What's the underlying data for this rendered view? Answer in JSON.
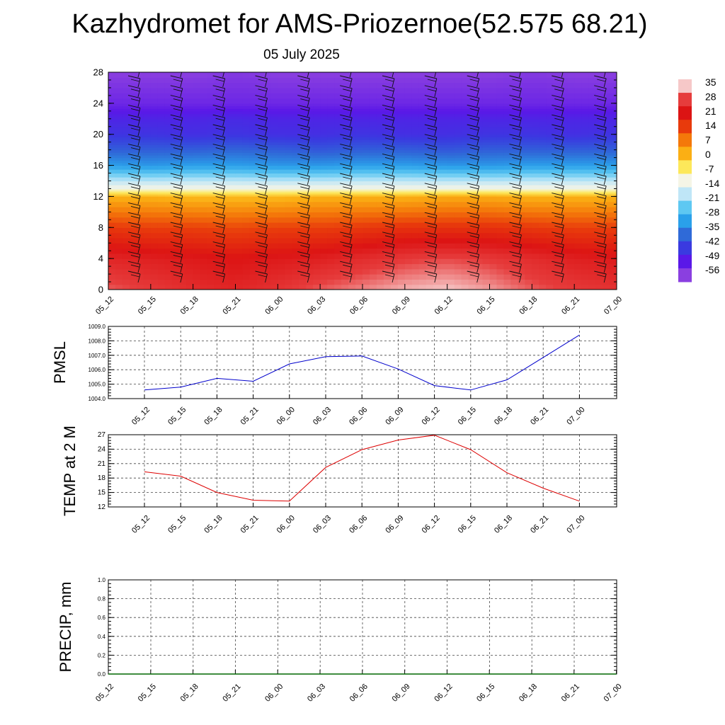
{
  "title": "Kazhydromet for AMS-Priozernoe(52.575 68.21)",
  "subtitle": "05 July 2025",
  "colorbar": {
    "labels": [
      "35",
      "28",
      "21",
      "14",
      "7",
      "0",
      "-7",
      "-14",
      "-21",
      "-28",
      "-35",
      "-42",
      "-49",
      "-56"
    ],
    "colors": [
      "#f6c8c8",
      "#e63c3c",
      "#dc1414",
      "#e83a0c",
      "#f4780a",
      "#fbaf14",
      "#fde85a",
      "#f5f5e6",
      "#bfe6f7",
      "#5ec8f2",
      "#2aa0ea",
      "#2f6ad8",
      "#3a3ae0",
      "#5a18e8",
      "#8a3fe0"
    ]
  },
  "chart_data": [
    {
      "type": "heatmap",
      "description_variable": "",
      "x_tick_labels": [
        "05_12",
        "05_15",
        "05_18",
        "05_21",
        "06_00",
        "06_03",
        "06_06",
        "06_09",
        "06_12",
        "06_15",
        "06_18",
        "06_21",
        "07_00"
      ],
      "y_ticks": [
        0,
        4,
        8,
        12,
        16,
        20,
        24,
        28
      ],
      "ylim": [
        0,
        28
      ],
      "color_scale": {
        "min": -56,
        "max": 35
      },
      "layers": [
        {
          "z": 0,
          "values": [
            30,
            28,
            26,
            25,
            27,
            30,
            32,
            34,
            35,
            33,
            30,
            28,
            27
          ]
        },
        {
          "z": 4,
          "values": [
            25,
            24,
            23,
            22,
            23,
            24,
            26,
            28,
            29,
            28,
            26,
            24,
            23
          ]
        },
        {
          "z": 8,
          "values": [
            16,
            15,
            15,
            14,
            15,
            15,
            16,
            17,
            17,
            17,
            16,
            15,
            15
          ]
        },
        {
          "z": 12,
          "values": [
            2,
            2,
            1,
            1,
            1,
            2,
            2,
            2,
            3,
            3,
            2,
            2,
            2
          ]
        },
        {
          "z": 13,
          "values": [
            -10,
            -10,
            -10,
            -10,
            -10,
            -10,
            -10,
            -10,
            -10,
            -10,
            -10,
            -10,
            -10
          ]
        },
        {
          "z": 16,
          "values": [
            -30,
            -31,
            -30,
            -30,
            -31,
            -31,
            -30,
            -30,
            -31,
            -31,
            -30,
            -30,
            -30
          ]
        },
        {
          "z": 18,
          "values": [
            -38,
            -38,
            -38,
            -37,
            -38,
            -39,
            -38,
            -38,
            -39,
            -38,
            -38,
            -38,
            -38
          ]
        },
        {
          "z": 20,
          "values": [
            -44,
            -44,
            -45,
            -44,
            -45,
            -45,
            -44,
            -45,
            -45,
            -44,
            -44,
            -45,
            -44
          ]
        },
        {
          "z": 22,
          "values": [
            -47,
            -47,
            -47,
            -46,
            -47,
            -47,
            -47,
            -47,
            -47,
            -47,
            -47,
            -47,
            -47
          ]
        },
        {
          "z": 24,
          "values": [
            -52,
            -52,
            -52,
            -52,
            -52,
            -52,
            -52,
            -52,
            -52,
            -52,
            -52,
            -52,
            -52
          ]
        },
        {
          "z": 28,
          "values": [
            -56,
            -56,
            -56,
            -55,
            -56,
            -56,
            -56,
            -56,
            -56,
            -56,
            -55,
            -56,
            -56
          ]
        }
      ]
    },
    {
      "type": "line",
      "ylabel": "PMSL",
      "categories": [
        "05_12",
        "05_15",
        "05_18",
        "05_21",
        "06_00",
        "06_03",
        "06_06",
        "06_09",
        "06_12",
        "06_15",
        "06_18",
        "06_21",
        "07_00"
      ],
      "ylim": [
        1004.0,
        1009.0
      ],
      "yticks": [
        "1004.0",
        "1005.0",
        "1006.0",
        "1007.0",
        "1008.0",
        "1009.0"
      ],
      "color": "#0000cc",
      "values": [
        1004.6,
        1004.8,
        1005.4,
        1005.2,
        1006.4,
        1006.9,
        1006.95,
        1006.05,
        1004.9,
        1004.6,
        1005.3,
        1006.85,
        1008.4
      ]
    },
    {
      "type": "line",
      "ylabel": "TEMP at 2 M",
      "categories": [
        "05_12",
        "05_15",
        "05_18",
        "05_21",
        "06_00",
        "06_03",
        "06_06",
        "06_09",
        "06_12",
        "06_15",
        "06_18",
        "06_21",
        "07_00"
      ],
      "ylim": [
        12,
        27
      ],
      "yticks": [
        "12",
        "15",
        "18",
        "21",
        "24",
        "27"
      ],
      "color": "#dd0000",
      "values": [
        19.3,
        18.4,
        15.0,
        13.4,
        13.2,
        20.2,
        23.9,
        25.9,
        26.9,
        23.9,
        19.1,
        15.9,
        13.2
      ]
    },
    {
      "type": "line",
      "ylabel": "PRECIP, mm",
      "categories": [
        "05_12",
        "05_15",
        "05_18",
        "05_21",
        "06_00",
        "06_03",
        "06_06",
        "06_09",
        "06_12",
        "06_15",
        "06_18",
        "06_21",
        "07_00"
      ],
      "ylim": [
        0.0,
        1.0
      ],
      "yticks": [
        "0.0",
        "0.2",
        "0.4",
        "0.6",
        "0.8",
        "1.0"
      ],
      "color": "#006600",
      "values": [
        0,
        0,
        0,
        0,
        0,
        0,
        0,
        0,
        0,
        0,
        0,
        0,
        0
      ]
    }
  ]
}
